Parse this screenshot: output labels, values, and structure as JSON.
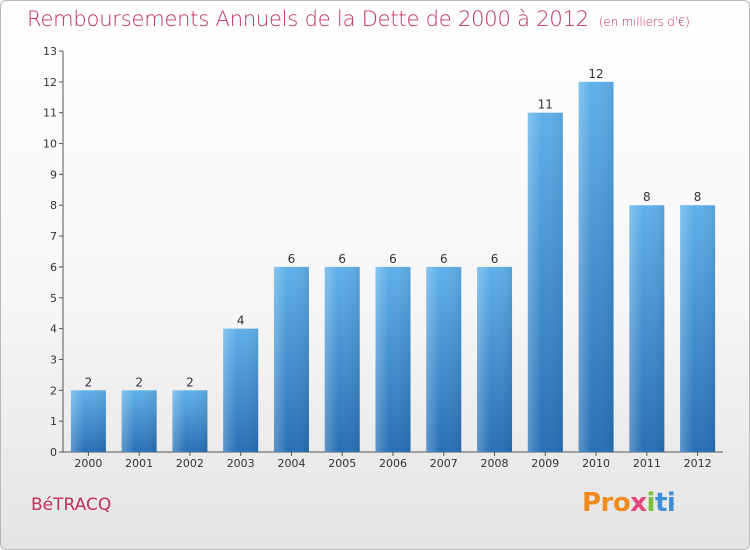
{
  "chart_data": {
    "type": "bar",
    "title": "Remboursements Annuels de la Dette de 2000 à 2012",
    "unit": "(en milliers d'€)",
    "categories": [
      "2000",
      "2001",
      "2002",
      "2003",
      "2004",
      "2005",
      "2006",
      "2007",
      "2008",
      "2009",
      "2010",
      "2011",
      "2012"
    ],
    "values": [
      2,
      2,
      2,
      4,
      6,
      6,
      6,
      6,
      6,
      11,
      12,
      8,
      8
    ],
    "ylim": [
      0,
      13
    ],
    "yticks": [
      0,
      1,
      2,
      3,
      4,
      5,
      6,
      7,
      8,
      9,
      10,
      11,
      12,
      13
    ],
    "bar_color": "#3d8fd6",
    "grid": false,
    "data_labels": true
  },
  "footer": {
    "town": "BéTRACQ",
    "logo_parts": [
      "Pro",
      "x",
      "i",
      "ti"
    ]
  },
  "colors": {
    "accent": "#c0305a",
    "bar_top": "#5aabe8",
    "bar_bottom": "#2a72b8"
  }
}
